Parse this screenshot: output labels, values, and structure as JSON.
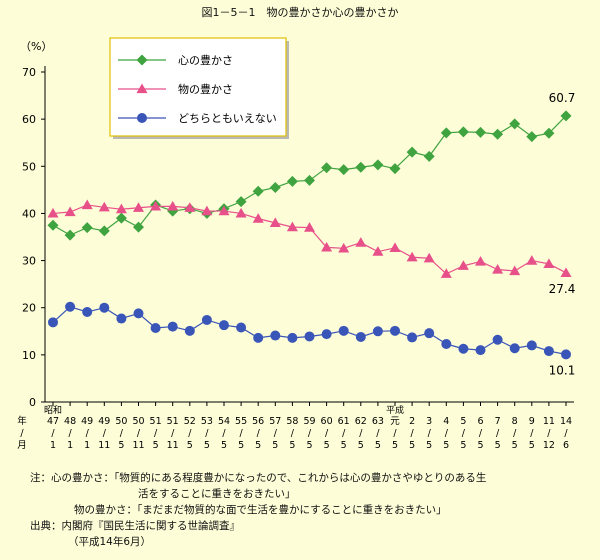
{
  "title": "図1－5－1　物の豊かさか心の豊かさか",
  "chart_data": {
    "type": "line",
    "ylabel": "（%）",
    "ylim": [
      0,
      70
    ],
    "yticks": [
      "0",
      "10",
      "20",
      "30",
      "40",
      "50",
      "60",
      "70"
    ],
    "grid": false,
    "legend_position": "top-left",
    "era_labels": {
      "showa": "昭和",
      "heisei": "平成"
    },
    "axis_corner": [
      "年",
      "/",
      "月"
    ],
    "categories": [
      {
        "y": "47",
        "m": "1"
      },
      {
        "y": "48",
        "m": "1"
      },
      {
        "y": "49",
        "m": "1"
      },
      {
        "y": "49",
        "m": "11"
      },
      {
        "y": "50",
        "m": "5"
      },
      {
        "y": "50",
        "m": "11"
      },
      {
        "y": "51",
        "m": "5"
      },
      {
        "y": "51",
        "m": "11"
      },
      {
        "y": "52",
        "m": "5"
      },
      {
        "y": "53",
        "m": "5"
      },
      {
        "y": "54",
        "m": "5"
      },
      {
        "y": "55",
        "m": "5"
      },
      {
        "y": "56",
        "m": "5"
      },
      {
        "y": "57",
        "m": "5"
      },
      {
        "y": "58",
        "m": "5"
      },
      {
        "y": "59",
        "m": "5"
      },
      {
        "y": "60",
        "m": "5"
      },
      {
        "y": "61",
        "m": "5"
      },
      {
        "y": "62",
        "m": "5"
      },
      {
        "y": "63",
        "m": "5"
      },
      {
        "y": "元",
        "m": "5"
      },
      {
        "y": "2",
        "m": "5"
      },
      {
        "y": "3",
        "m": "5"
      },
      {
        "y": "4",
        "m": "5"
      },
      {
        "y": "5",
        "m": "5"
      },
      {
        "y": "6",
        "m": "5"
      },
      {
        "y": "7",
        "m": "5"
      },
      {
        "y": "8",
        "m": "5"
      },
      {
        "y": "9",
        "m": "5"
      },
      {
        "y": "11",
        "m": "12"
      },
      {
        "y": "14",
        "m": "6"
      }
    ],
    "series": [
      {
        "name": "心の豊かさ",
        "color": "#3fa33f",
        "marker": "diamond",
        "values": [
          37.5,
          35.4,
          37.0,
          36.3,
          39.0,
          37.1,
          41.8,
          40.5,
          41.0,
          40.0,
          41.0,
          42.5,
          44.7,
          45.5,
          46.8,
          47.0,
          49.7,
          49.3,
          49.8,
          50.3,
          49.5,
          53.0,
          52.1,
          57.1,
          57.3,
          57.2,
          56.8,
          59.0,
          56.3,
          57.0,
          60.7
        ]
      },
      {
        "name": "物の豊かさ",
        "color": "#e8508a",
        "marker": "triangle",
        "values": [
          40.0,
          40.3,
          41.8,
          41.3,
          40.9,
          41.2,
          41.5,
          41.5,
          41.2,
          40.5,
          40.5,
          40.0,
          38.9,
          38.0,
          37.1,
          37.0,
          32.8,
          32.6,
          33.8,
          31.9,
          32.7,
          30.7,
          30.5,
          27.2,
          28.9,
          29.8,
          28.1,
          27.8,
          30.0,
          29.3,
          27.4
        ]
      },
      {
        "name": "どちらともいえない",
        "color": "#3a55b8",
        "marker": "circle",
        "values": [
          16.9,
          20.2,
          19.1,
          20.0,
          17.7,
          18.8,
          15.7,
          16.0,
          15.1,
          17.4,
          16.3,
          15.8,
          13.6,
          14.1,
          13.6,
          13.9,
          14.4,
          15.1,
          13.8,
          15.0,
          15.1,
          13.7,
          14.6,
          12.3,
          11.3,
          11.0,
          13.2,
          11.4,
          12.0,
          10.8,
          10.1
        ]
      }
    ],
    "annotations": [
      "60.7",
      "27.4",
      "10.1"
    ]
  },
  "notes": {
    "line1": "注：心の豊かさ：「物質的にある程度豊かになったので、これからは心の豊かさやゆとりのある生",
    "line2": "活をすることに重きをおきたい」",
    "line3": "物の豊かさ：「まだまだ物質的な面で生活を豊かにすることに重きをおきたい」",
    "line4": "出典：内閣府『国民生活に関する世論調査』",
    "line5": "（平成14年6月）"
  }
}
